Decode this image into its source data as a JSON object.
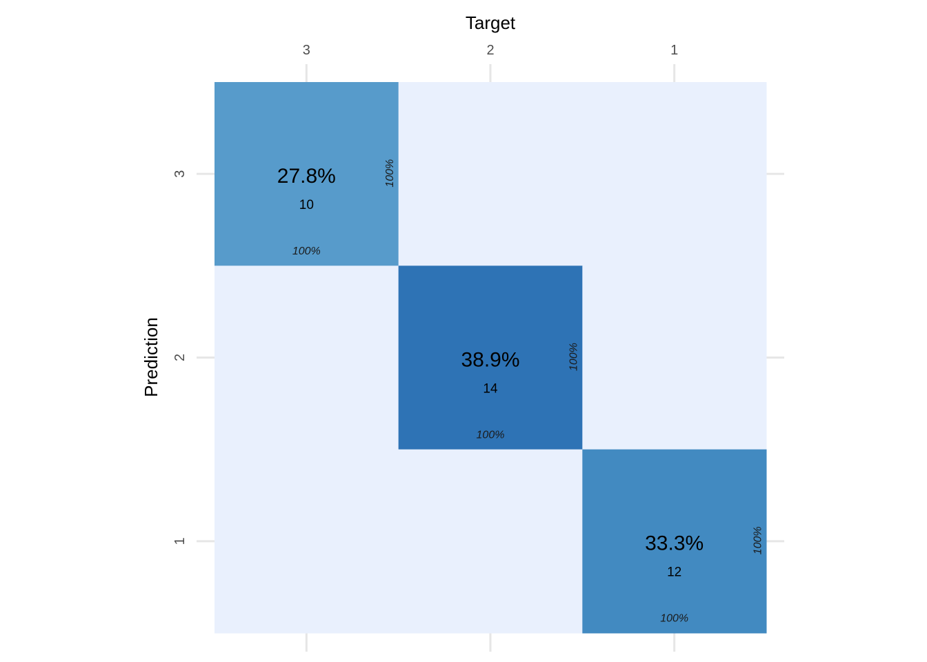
{
  "chart_data": {
    "type": "heatmap",
    "title": "",
    "xlabel": "Target",
    "ylabel": "Prediction",
    "x_categories": [
      "3",
      "2",
      "1"
    ],
    "y_categories": [
      "3",
      "2",
      "1"
    ],
    "cells": [
      {
        "target": "3",
        "prediction": "3",
        "count": 10,
        "percent": "27.8%",
        "col_pct": "100%",
        "row_pct": "100%"
      },
      {
        "target": "2",
        "prediction": "3",
        "count": 0
      },
      {
        "target": "1",
        "prediction": "3",
        "count": 0
      },
      {
        "target": "3",
        "prediction": "2",
        "count": 0
      },
      {
        "target": "2",
        "prediction": "2",
        "count": 14,
        "percent": "38.9%",
        "col_pct": "100%",
        "row_pct": "100%"
      },
      {
        "target": "1",
        "prediction": "2",
        "count": 0
      },
      {
        "target": "3",
        "prediction": "1",
        "count": 0
      },
      {
        "target": "2",
        "prediction": "1",
        "count": 0
      },
      {
        "target": "1",
        "prediction": "1",
        "count": 12,
        "percent": "33.3%",
        "col_pct": "100%",
        "row_pct": "100%"
      }
    ],
    "colors": {
      "empty": "#e9f0fd",
      "low": "#579bcb",
      "mid": "#428ac1",
      "high": "#2e73b5",
      "grid": "#e6e6e6"
    },
    "grid": true
  }
}
